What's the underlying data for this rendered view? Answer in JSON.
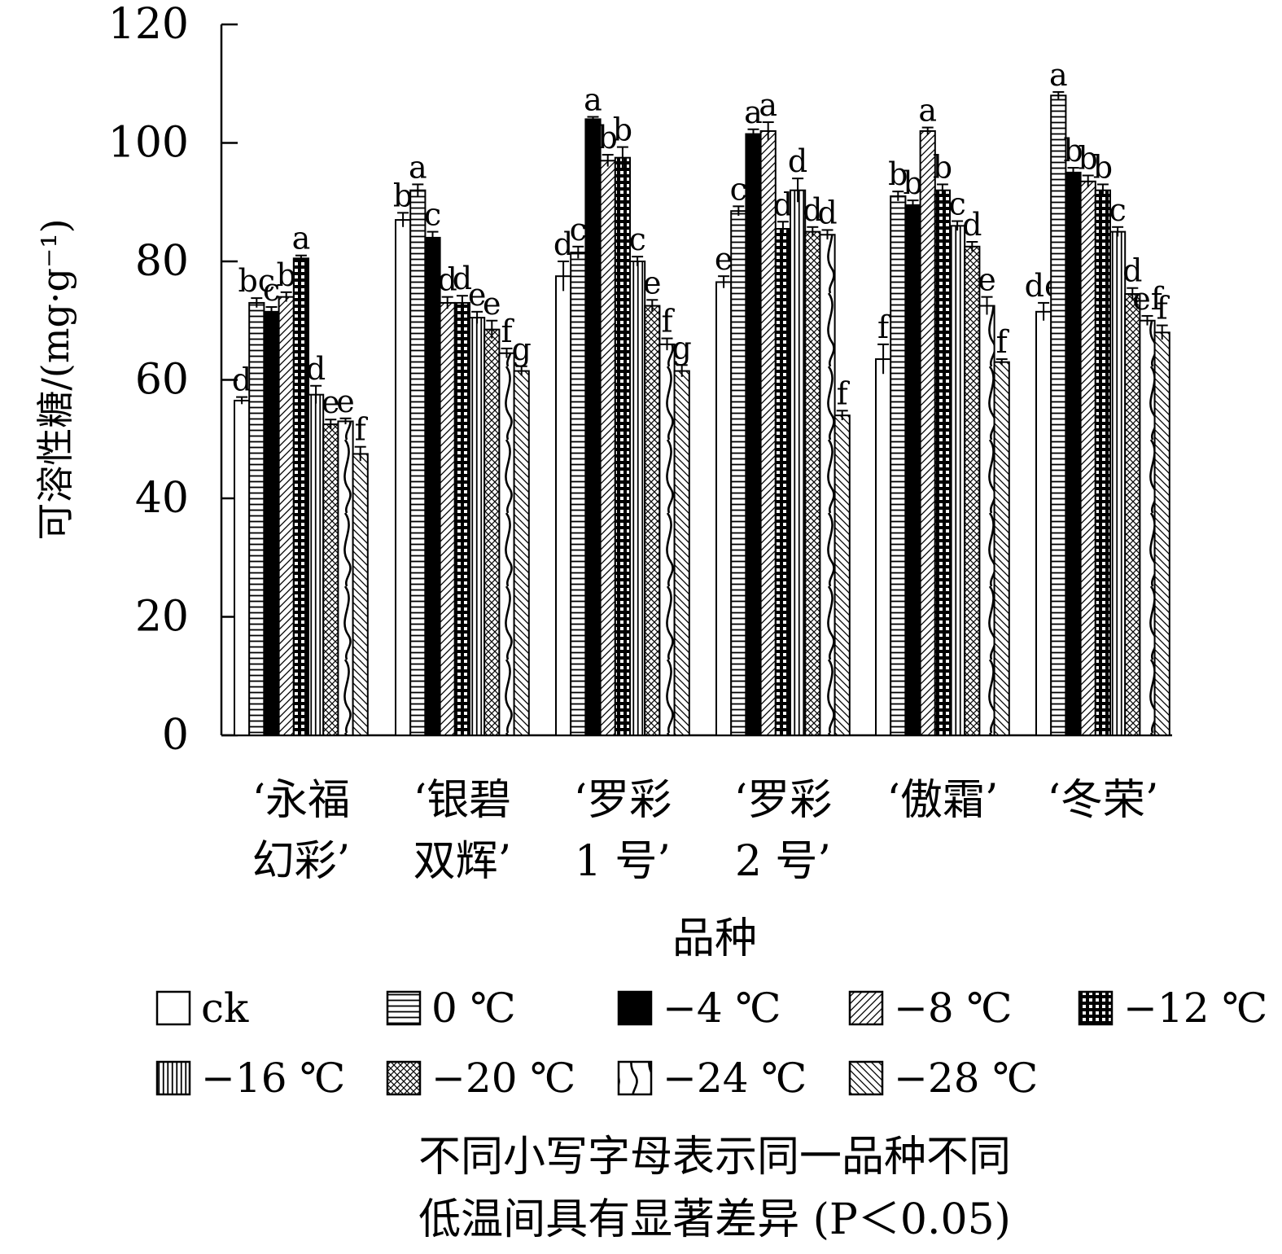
{
  "chart_data": {
    "type": "bar",
    "title": "",
    "xlabel": "品种",
    "ylabel": "可溶性糖/(mg·g⁻¹)",
    "ylim": [
      0,
      120
    ],
    "yticks": [
      0,
      20,
      40,
      60,
      80,
      100,
      120
    ],
    "grid": false,
    "legend_position": "bottom",
    "categories": [
      [
        "‘永福",
        "幻彩’"
      ],
      [
        "‘银碧",
        "双辉’"
      ],
      [
        "‘罗彩",
        "1 号’"
      ],
      [
        "‘罗彩",
        "2 号’"
      ],
      [
        "‘傲霜’"
      ],
      [
        "‘冬荣’"
      ]
    ],
    "series": [
      {
        "name": "ck",
        "pattern": "empty",
        "values": [
          56.5,
          87.0,
          77.5,
          76.5,
          63.5,
          71.5
        ],
        "errors": [
          0.6,
          1.2,
          2.5,
          1.0,
          2.5,
          1.5
        ],
        "letters": [
          "d",
          "b",
          "d",
          "e",
          "f",
          "de"
        ]
      },
      {
        "name": "0 ℃",
        "pattern": "hlines",
        "values": [
          73.0,
          92.0,
          81.5,
          88.5,
          91.0,
          108.0
        ],
        "errors": [
          0.8,
          1.0,
          1.0,
          0.8,
          0.8,
          0.6
        ],
        "letters": [
          "bc",
          "a",
          "c",
          "c",
          "b",
          "a"
        ]
      },
      {
        "name": "−4 ℃",
        "pattern": "solid",
        "values": [
          71.5,
          84.0,
          104.0,
          101.5,
          89.5,
          95.0
        ],
        "errors": [
          0.8,
          1.0,
          0.4,
          0.8,
          0.8,
          0.8
        ],
        "letters": [
          "c",
          "c",
          "a",
          "a",
          "b",
          "b"
        ]
      },
      {
        "name": "−8 ℃",
        "pattern": "diag",
        "values": [
          74.0,
          73.0,
          97.0,
          102.0,
          102.0,
          93.5
        ],
        "errors": [
          0.8,
          1.0,
          1.0,
          1.5,
          0.6,
          1.0
        ],
        "letters": [
          "b",
          "d",
          "b",
          "a",
          "a",
          "b"
        ]
      },
      {
        "name": "−12 ℃",
        "pattern": "grid",
        "values": [
          80.5,
          73.0,
          97.5,
          85.5,
          92.0,
          92.0
        ],
        "errors": [
          0.5,
          1.2,
          1.8,
          1.2,
          1.0,
          1.0
        ],
        "letters": [
          "a",
          "d",
          "b",
          "d",
          "b",
          "b"
        ]
      },
      {
        "name": "−16 ℃",
        "pattern": "vlines",
        "values": [
          57.5,
          70.5,
          80.0,
          92.0,
          86.0,
          85.0
        ],
        "errors": [
          1.5,
          1.0,
          0.8,
          2.0,
          0.8,
          0.8
        ],
        "letters": [
          "d",
          "e",
          "c",
          "d",
          "c",
          "c"
        ]
      },
      {
        "name": "−20 ℃",
        "pattern": "cross",
        "values": [
          52.5,
          68.5,
          72.5,
          85.0,
          82.5,
          74.5
        ],
        "errors": [
          0.8,
          1.5,
          1.0,
          0.8,
          0.8,
          1.0
        ],
        "letters": [
          "e",
          "e",
          "e",
          "d",
          "d",
          "d"
        ]
      },
      {
        "name": "−24 ℃",
        "pattern": "curve",
        "values": [
          53.0,
          64.5,
          66.0,
          84.5,
          72.5,
          70.0
        ],
        "errors": [
          0.5,
          0.8,
          1.0,
          0.8,
          1.5,
          0.8
        ],
        "letters": [
          "e",
          "f",
          "f",
          "d",
          "e",
          "ef"
        ]
      },
      {
        "name": "−28 ℃",
        "pattern": "rdiag",
        "values": [
          47.5,
          61.5,
          61.5,
          54.0,
          63.0,
          68.0
        ],
        "errors": [
          1.2,
          0.8,
          1.0,
          0.8,
          0.5,
          1.2
        ],
        "letters": [
          "f",
          "g",
          "g",
          "f",
          "f",
          "f"
        ]
      }
    ]
  },
  "footnote": [
    "不同小写字母表示同一品种不同",
    "低温间具有显著差异 (P＜0.05)"
  ]
}
